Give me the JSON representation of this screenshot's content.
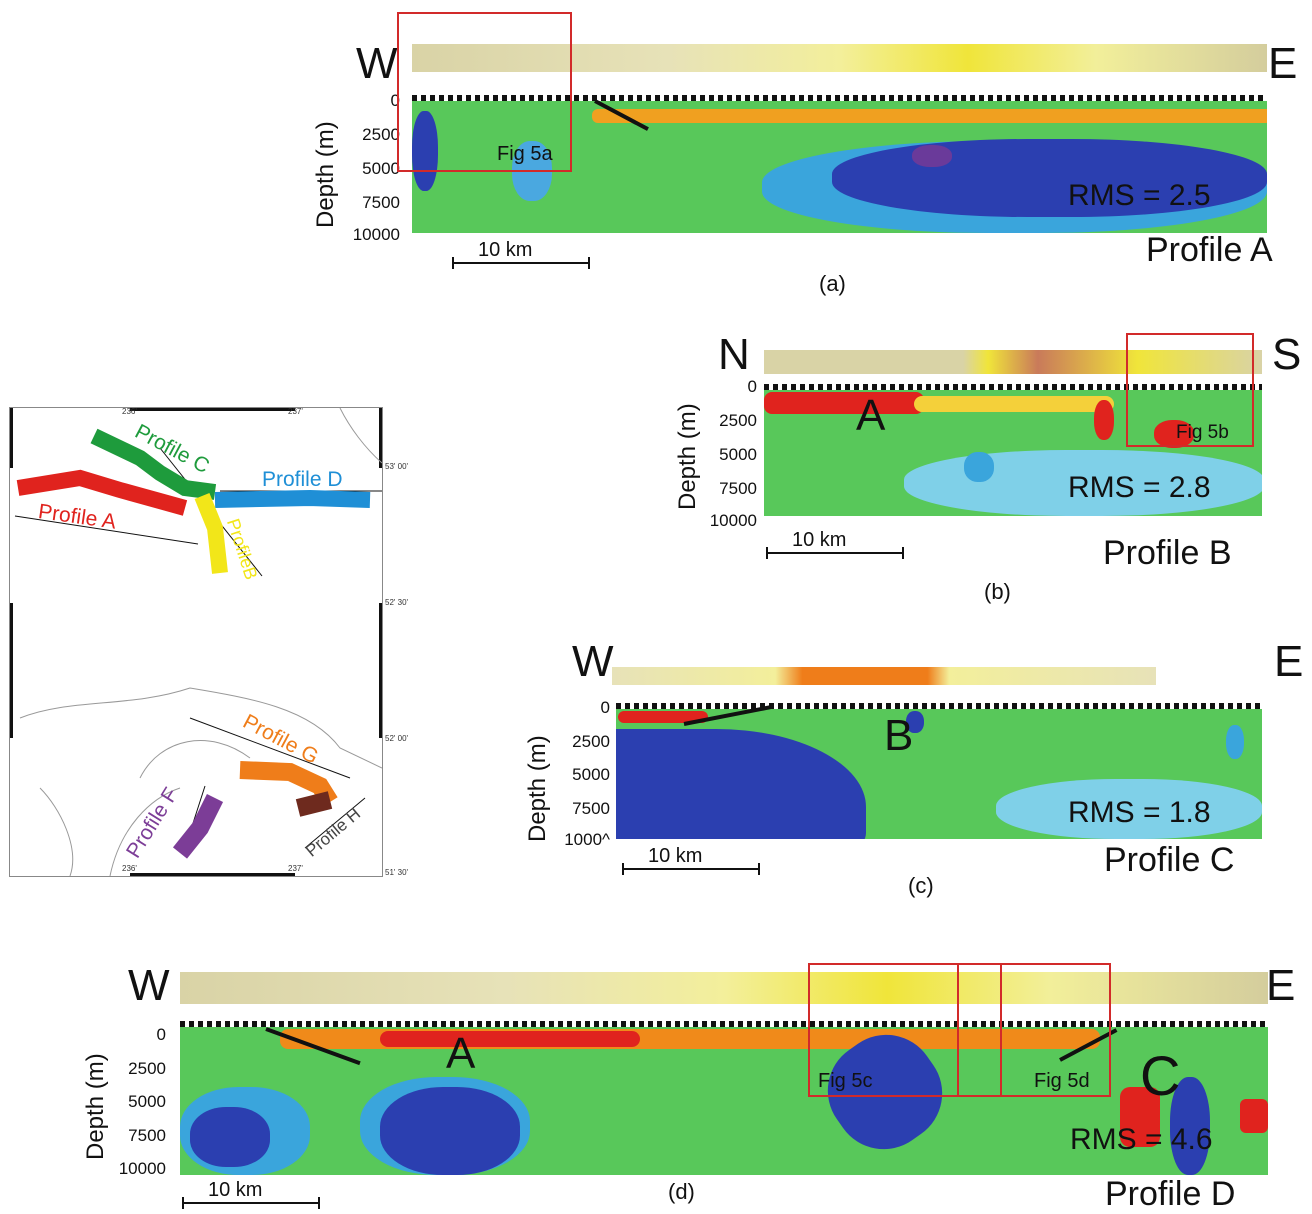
{
  "depth_label": "Depth (m)",
  "scale_label": "10 km",
  "profiles": {
    "a": {
      "west": "W",
      "east": "E",
      "ticks": [
        "0",
        "2500",
        "5000",
        "7500",
        "10000"
      ],
      "rms": "RMS = 2.5",
      "title": "Profile A",
      "caption": "(a)",
      "box_label": "Fig 5a"
    },
    "b": {
      "west": "N",
      "east": "S",
      "ticks": [
        "0",
        "2500",
        "5000",
        "7500",
        "10000"
      ],
      "rms": "RMS = 2.8",
      "title": "Profile B",
      "caption": "(b)",
      "marker": "A",
      "box_label": "Fig 5b"
    },
    "c": {
      "west": "W",
      "east": "E",
      "ticks": [
        "0",
        "2500",
        "5000",
        "7500",
        "1000^"
      ],
      "rms": "RMS = 1.8",
      "title": "Profile C",
      "caption": "(c)",
      "marker": "B"
    },
    "d": {
      "west": "W",
      "east": "E",
      "ticks": [
        "0",
        "2500",
        "5000",
        "7500",
        "10000"
      ],
      "rms": "RMS = 4.6",
      "title": "Profile D",
      "caption": "(d)",
      "marker_a": "A",
      "marker_c": "C",
      "box_label_c": "Fig 5c",
      "box_label_d": "Fig 5d"
    }
  },
  "map": {
    "top_ticks": [
      "236'",
      "237'"
    ],
    "bottom_ticks": [
      "236'",
      "237'"
    ],
    "right_ticks": [
      "53' 00'",
      "52' 30'",
      "52' 00'",
      "51' 30'"
    ],
    "labels": {
      "profile_a": "Profile A",
      "profile_b": "ProfileB",
      "profile_c": "Profile C",
      "profile_d": "Profile D",
      "profile_f": "Profile F",
      "profile_g": "Profile G",
      "profile_h": "Profile H"
    },
    "colors": {
      "profile_a": "#e0231e",
      "profile_b": "#f2e619",
      "profile_c": "#1e9b3c",
      "profile_d": "#1f8fd6",
      "profile_f": "#7c3d97",
      "profile_g": "#ef7d1a",
      "profile_h": "#6e2a1e"
    }
  },
  "colors": {
    "box": "#d22a2a",
    "low_velocity": "#e0231e",
    "high_velocity": "#2b3fb0",
    "background": "#58c85a"
  }
}
